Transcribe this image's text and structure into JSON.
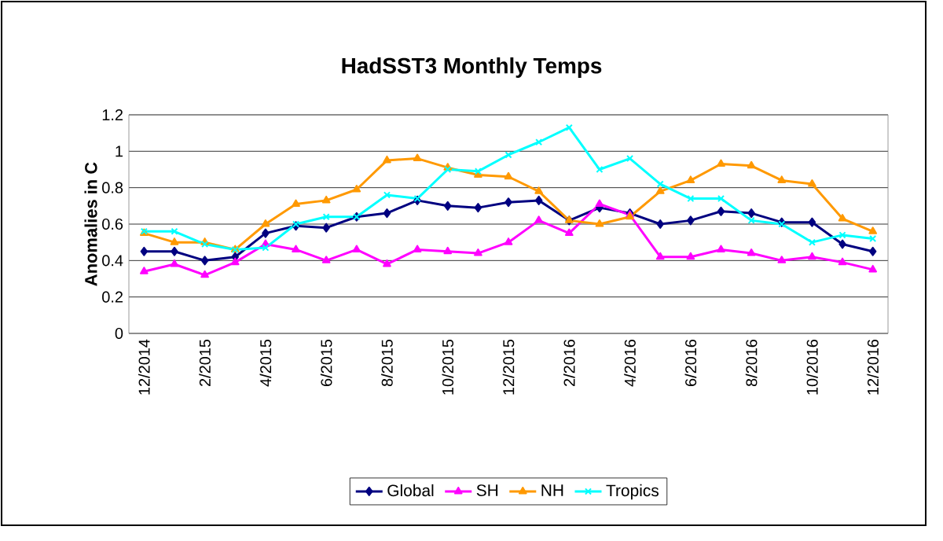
{
  "chart_data": {
    "type": "line",
    "title": "HadSST3 Monthly Temps",
    "ylabel": "Anomalies in C",
    "categories": [
      "12/2014",
      null,
      "2/2015",
      null,
      "4/2015",
      null,
      "6/2015",
      null,
      "8/2015",
      null,
      "10/2015",
      null,
      "12/2015",
      null,
      "2/2016",
      null,
      "4/2016",
      null,
      "6/2016",
      null,
      "8/2016",
      null,
      "10/2016",
      null,
      "12/2016"
    ],
    "series": [
      {
        "name": "Global",
        "color": "#000080",
        "marker": "diamond",
        "values": [
          0.45,
          0.45,
          0.4,
          0.42,
          0.55,
          0.59,
          0.58,
          0.64,
          0.66,
          0.73,
          0.7,
          0.69,
          0.72,
          0.73,
          0.62,
          0.69,
          0.66,
          0.6,
          0.62,
          0.67,
          0.66,
          0.61,
          0.61,
          0.49,
          0.45
        ]
      },
      {
        "name": "SH",
        "color": "#ff00ff",
        "marker": "triangle",
        "values": [
          0.34,
          0.38,
          0.32,
          0.39,
          0.49,
          0.46,
          0.4,
          0.46,
          0.38,
          0.46,
          0.45,
          0.44,
          0.5,
          0.62,
          0.55,
          0.71,
          0.65,
          0.42,
          0.42,
          0.46,
          0.44,
          0.4,
          0.42,
          0.39,
          0.35
        ]
      },
      {
        "name": "NH",
        "color": "#ff9900",
        "marker": "triangle",
        "values": [
          0.55,
          0.5,
          0.5,
          0.46,
          0.6,
          0.71,
          0.73,
          0.79,
          0.95,
          0.96,
          0.91,
          0.87,
          0.86,
          0.78,
          0.62,
          0.6,
          0.64,
          0.78,
          0.84,
          0.93,
          0.92,
          0.84,
          0.82,
          0.63,
          0.56
        ]
      },
      {
        "name": "Tropics",
        "color": "#00ffff",
        "marker": "cross",
        "values": [
          0.56,
          0.56,
          0.49,
          0.46,
          0.47,
          0.6,
          0.64,
          0.64,
          0.76,
          0.74,
          0.9,
          0.89,
          0.98,
          1.05,
          1.13,
          0.9,
          0.96,
          0.82,
          0.74,
          0.74,
          0.62,
          0.6,
          0.5,
          0.54,
          0.52
        ]
      }
    ],
    "ylim": [
      0,
      1.2
    ],
    "yticks": [
      0,
      0.2,
      0.4,
      0.6,
      0.8,
      1,
      1.2
    ],
    "grid": "y",
    "legend": "bottom",
    "line_style": "solid"
  }
}
